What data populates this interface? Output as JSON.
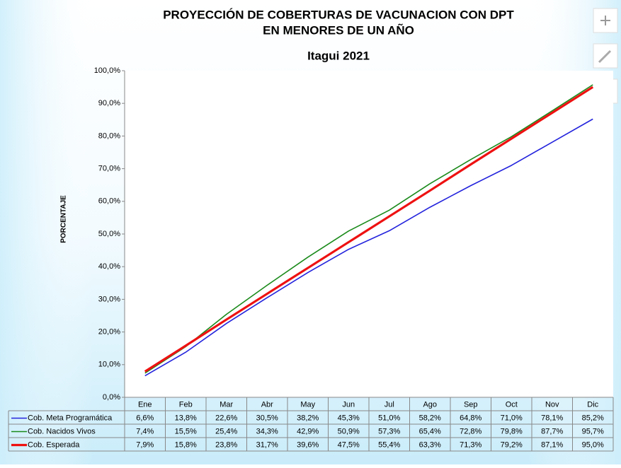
{
  "chart_data": {
    "type": "line",
    "title": "PROYECCIÓN DE COBERTURAS DE VACUNACION CON DPT",
    "title_line2": "EN MENORES DE UN AÑO",
    "subtitle": "Itagui 2021",
    "y_label": "PORCENTAJE",
    "categories": [
      "Ene",
      "Feb",
      "Mar",
      "Abr",
      "May",
      "Jun",
      "Jul",
      "Ago",
      "Sep",
      "Oct",
      "Nov",
      "Dic"
    ],
    "series": [
      {
        "name": "Cob. Meta Programática",
        "color": "#2323dd",
        "width": 1.6,
        "values": [
          6.6,
          13.8,
          22.6,
          30.5,
          38.2,
          45.3,
          51.0,
          58.2,
          64.8,
          71.0,
          78.1,
          85.2
        ],
        "value_labels": [
          "6,6%",
          "13,8%",
          "22,6%",
          "30,5%",
          "38,2%",
          "45,3%",
          "51,0%",
          "58,2%",
          "64,8%",
          "71,0%",
          "78,1%",
          "85,2%"
        ]
      },
      {
        "name": "Cob. Nacidos Vivos",
        "color": "#1a8a1a",
        "width": 1.6,
        "values": [
          7.4,
          15.5,
          25.4,
          34.3,
          42.9,
          50.9,
          57.3,
          65.4,
          72.8,
          79.8,
          87.7,
          95.7
        ],
        "value_labels": [
          "7,4%",
          "15,5%",
          "25,4%",
          "34,3%",
          "42,9%",
          "50,9%",
          "57,3%",
          "65,4%",
          "72,8%",
          "79,8%",
          "87,7%",
          "95,7%"
        ]
      },
      {
        "name": "Cob. Esperada",
        "color": "#ee1111",
        "width": 3.2,
        "values": [
          7.9,
          15.8,
          23.8,
          31.7,
          39.6,
          47.5,
          55.4,
          63.3,
          71.3,
          79.2,
          87.1,
          95.0
        ],
        "value_labels": [
          "7,9%",
          "15,8%",
          "23,8%",
          "31,7%",
          "39,6%",
          "47,5%",
          "55,4%",
          "63,3%",
          "71,3%",
          "79,2%",
          "87,1%",
          "95,0%"
        ]
      }
    ],
    "ylim": [
      0,
      100
    ],
    "yticks": [
      {
        "value": 0,
        "label": "0,0%"
      },
      {
        "value": 10,
        "label": "10,0%"
      },
      {
        "value": 20,
        "label": "20,0%"
      },
      {
        "value": 30,
        "label": "30,0%"
      },
      {
        "value": 40,
        "label": "40,0%"
      },
      {
        "value": 50,
        "label": "50,0%"
      },
      {
        "value": 60,
        "label": "60,0%"
      },
      {
        "value": 70,
        "label": "70,0%"
      },
      {
        "value": 80,
        "label": "80,0%"
      },
      {
        "value": 90,
        "label": "90,0%"
      },
      {
        "value": 100,
        "label": "100,0%"
      }
    ]
  }
}
